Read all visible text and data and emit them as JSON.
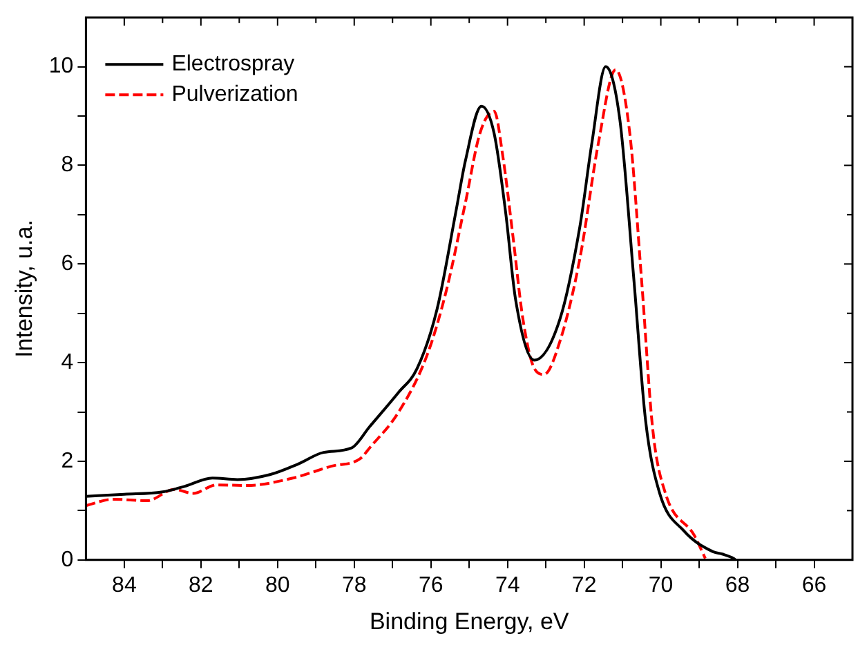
{
  "chart_data": {
    "type": "line",
    "xlabel": "Binding Energy, eV",
    "ylabel": "Intensity, u.a.",
    "xlim": [
      85,
      65
    ],
    "ylim": [
      0,
      11
    ],
    "xticks": [
      84,
      {
        "value": 83,
        "label": null
      },
      82,
      {
        "value": 81,
        "label": null
      },
      80,
      {
        "value": 79,
        "label": null
      },
      78,
      {
        "value": 77,
        "label": null
      },
      76,
      {
        "value": 75,
        "label": null
      },
      74,
      {
        "value": 73,
        "label": null
      },
      72,
      {
        "value": 71,
        "label": null
      },
      70,
      {
        "value": 69,
        "label": null
      },
      68,
      {
        "value": 67,
        "label": null
      },
      66
    ],
    "yticks": [
      0,
      {
        "value": 1,
        "label": null
      },
      2,
      {
        "value": 3,
        "label": null
      },
      4,
      {
        "value": 5,
        "label": null
      },
      6,
      {
        "value": 7,
        "label": null
      },
      8,
      {
        "value": 9,
        "label": null
      },
      10
    ],
    "grid": false,
    "legend": "top left",
    "marker": "none",
    "series": [
      {
        "name": "Electrospray",
        "color": "#000000",
        "line_style": "solid",
        "x": [
          85,
          84,
          83,
          82.43,
          81.7,
          81.05,
          80.2,
          79.45,
          78.8,
          78.07,
          77.6,
          76.84,
          76.36,
          75.84,
          75.35,
          75.1,
          74.68,
          74.35,
          74.05,
          73.79,
          73.3,
          72.63,
          72.11,
          71.8,
          71.44,
          71.07,
          70.7,
          70.4,
          70.03,
          69.4,
          68.65,
          68.4,
          68.1,
          68.05
        ],
        "values": [
          1.29,
          1.33,
          1.38,
          1.49,
          1.66,
          1.63,
          1.73,
          1.95,
          2.18,
          2.27,
          2.7,
          3.4,
          3.88,
          5.08,
          7.05,
          8.09,
          9.2,
          8.65,
          7.05,
          5.28,
          4.05,
          4.89,
          6.77,
          8.45,
          10.0,
          8.93,
          5.65,
          2.84,
          1.35,
          0.59,
          0.17,
          0.12,
          0.03,
          0
        ]
      },
      {
        "name": "Pulverization",
        "color": "#ff0000",
        "line_style": "dashed",
        "x": [
          85,
          84.3,
          83.4,
          82.7,
          82.2,
          81.6,
          80.8,
          79.6,
          78.6,
          77.85,
          77.6,
          76.84,
          76.1,
          75.6,
          75.1,
          74.72,
          74.35,
          74.12,
          73.86,
          73.6,
          73.3,
          73.05,
          72.63,
          72.11,
          71.63,
          71.18,
          70.81,
          70.5,
          70.21,
          69.88,
          69.13,
          68.84
        ],
        "values": [
          1.1,
          1.23,
          1.2,
          1.43,
          1.35,
          1.52,
          1.51,
          1.66,
          1.9,
          2.05,
          2.27,
          3.0,
          4.15,
          5.45,
          7.24,
          8.65,
          9.1,
          8.17,
          6.57,
          4.89,
          3.88,
          3.76,
          4.44,
          6.12,
          8.45,
          9.94,
          8.65,
          5.65,
          2.64,
          1.35,
          0.5,
          0.03
        ]
      }
    ]
  }
}
